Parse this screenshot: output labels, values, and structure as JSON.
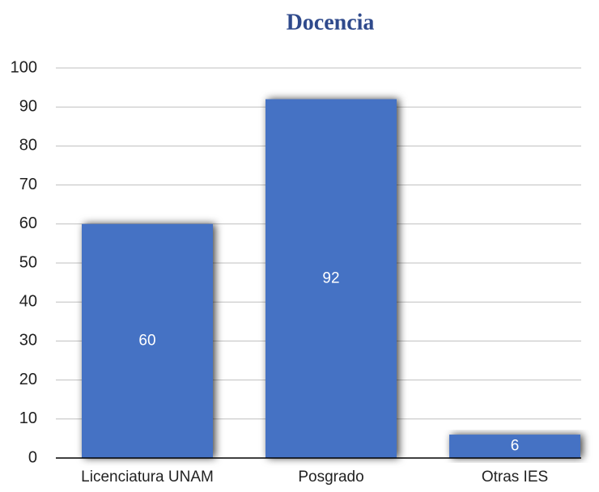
{
  "chart_data": {
    "type": "bar",
    "title": "Docencia",
    "categories": [
      "Licenciatura UNAM",
      "Posgrado",
      "Otras IES"
    ],
    "values": [
      60,
      92,
      6
    ],
    "color": "#4472c4",
    "ylim": [
      0,
      100
    ],
    "yticks": [
      0,
      10,
      20,
      30,
      40,
      50,
      60,
      70,
      80,
      90,
      100
    ],
    "grid": true
  }
}
